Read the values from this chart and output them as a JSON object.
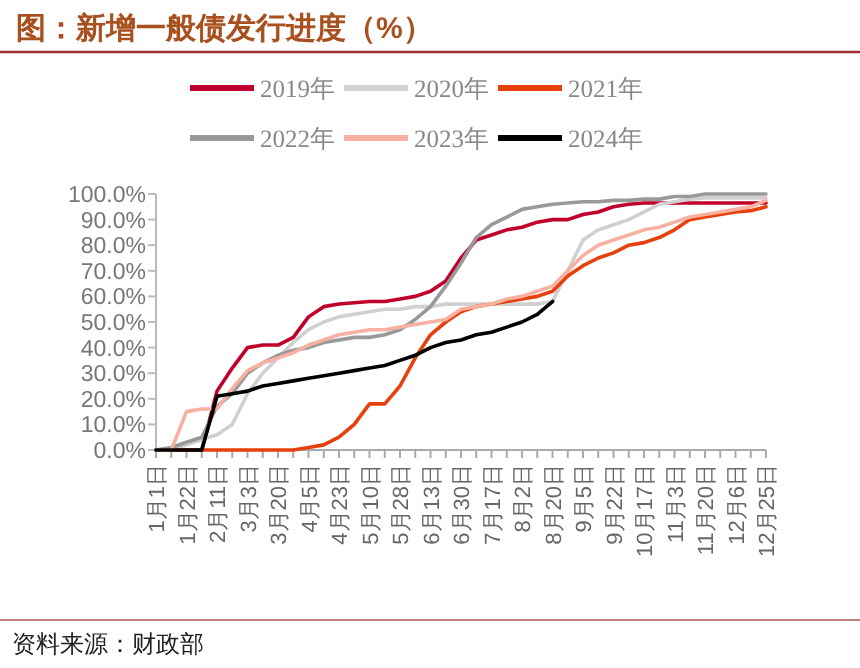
{
  "chart_data": {
    "type": "line",
    "title": "图：新增一般债发行进度（%）",
    "categories": [
      "1月1日",
      null,
      "1月22日",
      null,
      "2月11日",
      null,
      "3月3日",
      null,
      "3月20日",
      null,
      "4月5日",
      null,
      "4月23日",
      null,
      "5月10日",
      null,
      "5月28日",
      null,
      "6月13日",
      null,
      "6月30日",
      null,
      "7月17日",
      null,
      "8月2日",
      null,
      "8月20日",
      null,
      "9月5日",
      null,
      "9月22日",
      null,
      "10月17日",
      null,
      "11月3日",
      null,
      "11月20日",
      null,
      "12月6日",
      null,
      "12月25日"
    ],
    "series": [
      {
        "name": "2019年",
        "color": "#c0002a",
        "values": [
          0,
          0,
          0,
          0,
          23,
          32,
          40,
          41,
          41,
          44,
          52,
          56,
          57,
          57.5,
          58,
          58,
          59,
          60,
          62,
          66,
          75,
          82,
          84,
          86,
          87,
          89,
          90,
          90,
          92,
          93,
          95,
          96,
          96.5,
          96.5,
          96.5,
          96.5,
          96.5,
          96.5,
          96.5,
          96.5,
          96.5
        ]
      },
      {
        "name": "2020年",
        "color": "#d0d0d0",
        "values": [
          0,
          0,
          2,
          4,
          6,
          10,
          22,
          30,
          36,
          42,
          47,
          50,
          52,
          53,
          54,
          55,
          55,
          56,
          56,
          57,
          57,
          57,
          57,
          57,
          57,
          57,
          58,
          70,
          82,
          86,
          88,
          90,
          93,
          96,
          97,
          98,
          98.5,
          98.5,
          98.5,
          98.5,
          98.5
        ]
      },
      {
        "name": "2021年",
        "color": "#e8400c",
        "values": [
          0,
          0,
          0,
          0,
          0,
          0,
          0,
          0,
          0,
          0,
          1,
          2,
          5,
          10,
          18,
          18,
          25,
          36,
          45,
          50,
          54,
          56,
          57,
          58,
          59,
          60,
          62,
          68,
          72,
          75,
          77,
          80,
          81,
          83,
          86,
          90,
          91,
          92,
          93,
          93.5,
          95
        ]
      },
      {
        "name": "2022年",
        "color": "#999999",
        "values": [
          0,
          1,
          3,
          5,
          17,
          22,
          30,
          34,
          37,
          39,
          40,
          42,
          43,
          44,
          44,
          45,
          47,
          51,
          56,
          64,
          73,
          83,
          88,
          91,
          94,
          95,
          96,
          96.5,
          97,
          97,
          97.5,
          97.5,
          98,
          98,
          99,
          99,
          100,
          100,
          100,
          100,
          100
        ]
      },
      {
        "name": "2023年",
        "color": "#f8b0a0",
        "values": [
          0,
          0,
          15,
          16,
          16,
          24,
          31,
          34,
          36,
          38,
          41,
          43,
          45,
          46,
          47,
          47,
          48,
          49,
          50,
          51,
          55,
          56,
          57,
          59,
          60,
          62,
          64,
          70,
          76,
          80,
          82,
          84,
          86,
          87,
          89,
          91,
          92,
          93,
          94,
          95,
          97.5
        ]
      },
      {
        "name": "2024年",
        "color": "#000000",
        "values": [
          0,
          0,
          0,
          0,
          21,
          22,
          23,
          25,
          26,
          27,
          28,
          29,
          30,
          31,
          32,
          33,
          35,
          37,
          40,
          42,
          43,
          45,
          46,
          48,
          50,
          53,
          58,
          null,
          null,
          null,
          null,
          null,
          null,
          null,
          null,
          null,
          null,
          null,
          null,
          null,
          null
        ]
      }
    ],
    "ylim": [
      0,
      100
    ],
    "yticks": [
      {
        "value": 0,
        "label": "0.0%"
      },
      {
        "value": 10,
        "label": "10.0%"
      },
      {
        "value": 20,
        "label": "20.0%"
      },
      {
        "value": 30,
        "label": "30.0%"
      },
      {
        "value": 40,
        "label": "40.0%"
      },
      {
        "value": 50,
        "label": "50.0%"
      },
      {
        "value": 60,
        "label": "60.0%"
      },
      {
        "value": 70,
        "label": "70.0%"
      },
      {
        "value": 80,
        "label": "80.0%"
      },
      {
        "value": 90,
        "label": "90.0%"
      },
      {
        "value": 100,
        "label": "100.0%"
      }
    ],
    "legend": "top",
    "annotations": [
      "资料来源：财政部"
    ]
  }
}
